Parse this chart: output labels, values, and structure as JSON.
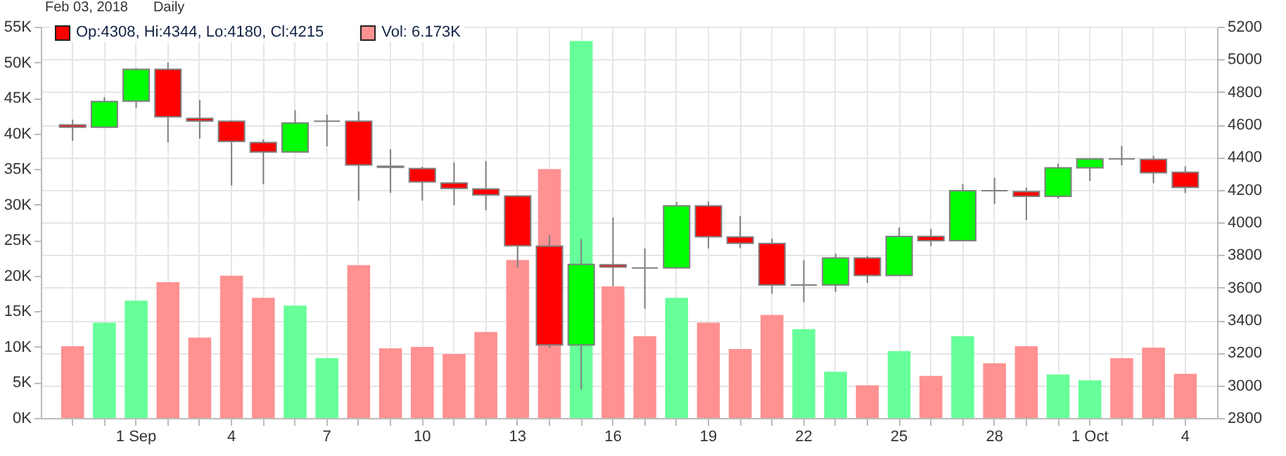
{
  "chart_data": {
    "type": "candlestick",
    "title": "Feb 03, 2018",
    "subtitle": "Daily",
    "categories": [
      null,
      null,
      "1 Sep",
      null,
      null,
      "4",
      null,
      null,
      "7",
      null,
      null,
      "10",
      null,
      null,
      "13",
      null,
      null,
      "16",
      null,
      null,
      "19",
      null,
      null,
      "22",
      null,
      null,
      "25",
      null,
      null,
      "28",
      null,
      null,
      "1 Oct",
      null,
      null,
      "4"
    ],
    "series": [
      {
        "name": "Op:4308, Hi:4344, Lo:4180, Cl:4215",
        "axis": "y2",
        "color": "#ff0000",
        "ohlc": [
          [
            4598,
            4630,
            4500,
            4584
          ],
          [
            4584,
            4768,
            4580,
            4741
          ],
          [
            4744,
            4946,
            4701,
            4939
          ],
          [
            4939,
            4981,
            4490,
            4648
          ],
          [
            4638,
            4750,
            4514,
            4622
          ],
          [
            4621,
            4626,
            4226,
            4496
          ],
          [
            4490,
            4509,
            4234,
            4432
          ],
          [
            4432,
            4688,
            4432,
            4610
          ],
          [
            4621,
            4661,
            4466,
            4621
          ],
          [
            4621,
            4680,
            4133,
            4352
          ],
          [
            4344,
            4448,
            4181,
            4338
          ],
          [
            4330,
            4341,
            4133,
            4248
          ],
          [
            4242,
            4368,
            4106,
            4208
          ],
          [
            4205,
            4376,
            4074,
            4168
          ],
          [
            4162,
            4162,
            3722,
            3856
          ],
          [
            3854,
            3922,
            3230,
            3248
          ],
          [
            3248,
            3896,
            2974,
            3742
          ],
          [
            3740,
            4030,
            3608,
            3726
          ],
          [
            3720,
            3840,
            3470,
            3720
          ],
          [
            3720,
            4126,
            3720,
            4101
          ],
          [
            4101,
            4128,
            3840,
            3912
          ],
          [
            3910,
            4040,
            3842,
            3872
          ],
          [
            3870,
            3901,
            3562,
            3616
          ],
          [
            3616,
            3768,
            3510,
            3616
          ],
          [
            3616,
            3808,
            3574,
            3782
          ],
          [
            3782,
            3794,
            3630,
            3674
          ],
          [
            3674,
            3968,
            3674,
            3914
          ],
          [
            3914,
            3960,
            3854,
            3888
          ],
          [
            3888,
            4234,
            3888,
            4194
          ],
          [
            4194,
            4274,
            4114,
            4194
          ],
          [
            4189,
            4213,
            4014,
            4160
          ],
          [
            4160,
            4360,
            4146,
            4334
          ],
          [
            4334,
            4394,
            4254,
            4390
          ],
          [
            4390,
            4470,
            4350,
            4390
          ],
          [
            4386,
            4408,
            4240,
            4304
          ],
          [
            4308,
            4344,
            4180,
            4215
          ]
        ],
        "colors": [
          "#ff0000",
          "#00ff00",
          "#00ff00",
          "#ff0000",
          "#ff0000",
          "#ff0000",
          "#ff0000",
          "#00ff00",
          "#808080",
          "#ff0000",
          "#ff0000",
          "#ff0000",
          "#ff0000",
          "#ff0000",
          "#ff0000",
          "#ff0000",
          "#00ff00",
          "#ff0000",
          "#808080",
          "#00ff00",
          "#ff0000",
          "#ff0000",
          "#ff0000",
          "#808080",
          "#00ff00",
          "#ff0000",
          "#00ff00",
          "#ff0000",
          "#00ff00",
          "#808080",
          "#ff0000",
          "#00ff00",
          "#00ff00",
          "#808080",
          "#ff0000",
          "#ff0000"
        ]
      },
      {
        "name": "Vol: 6.173K",
        "type": "bar",
        "color": "#ff9191",
        "values": [
          10100,
          13400,
          16500,
          19100,
          11300,
          20000,
          16900,
          15800,
          8400,
          21500,
          9800,
          10000,
          9000,
          12100,
          22200,
          35000,
          53000,
          18500,
          11500,
          16900,
          13400,
          9700,
          14500,
          12500,
          6500,
          4600,
          9400,
          5900,
          11500,
          7700,
          10100,
          6100,
          5300,
          8400,
          9900,
          6200
        ],
        "colors": [
          "#ff9191",
          "#66ff99",
          "#66ff99",
          "#ff9191",
          "#ff9191",
          "#ff9191",
          "#ff9191",
          "#66ff99",
          "#66ff99",
          "#ff9191",
          "#ff9191",
          "#ff9191",
          "#ff9191",
          "#ff9191",
          "#ff9191",
          "#ff9191",
          "#66ff99",
          "#ff9191",
          "#ff9191",
          "#66ff99",
          "#ff9191",
          "#ff9191",
          "#ff9191",
          "#66ff99",
          "#66ff99",
          "#ff9191",
          "#66ff99",
          "#ff9191",
          "#66ff99",
          "#ff9191",
          "#ff9191",
          "#66ff99",
          "#66ff99",
          "#ff9191",
          "#ff9191",
          "#ff9191"
        ]
      }
    ],
    "ylim": [
      0,
      55000
    ],
    "yticks": [
      {
        "value": 0,
        "label": "0K"
      },
      {
        "value": 5000,
        "label": "5K"
      },
      {
        "value": 10000,
        "label": "10K"
      },
      {
        "value": 15000,
        "label": "15K"
      },
      {
        "value": 20000,
        "label": "20K"
      },
      {
        "value": 25000,
        "label": "25K"
      },
      {
        "value": 30000,
        "label": "30K"
      },
      {
        "value": 35000,
        "label": "35K"
      },
      {
        "value": 40000,
        "label": "40K"
      },
      {
        "value": 45000,
        "label": "45K"
      },
      {
        "value": 50000,
        "label": "50K"
      },
      {
        "value": 55000,
        "label": "55K"
      }
    ],
    "y2lim": [
      2800,
      5200
    ],
    "y2ticks": [
      2800,
      3000,
      3200,
      3400,
      3600,
      3800,
      4000,
      4200,
      4400,
      4600,
      4800,
      5000,
      5200
    ],
    "grid": true,
    "legend": "top left"
  }
}
